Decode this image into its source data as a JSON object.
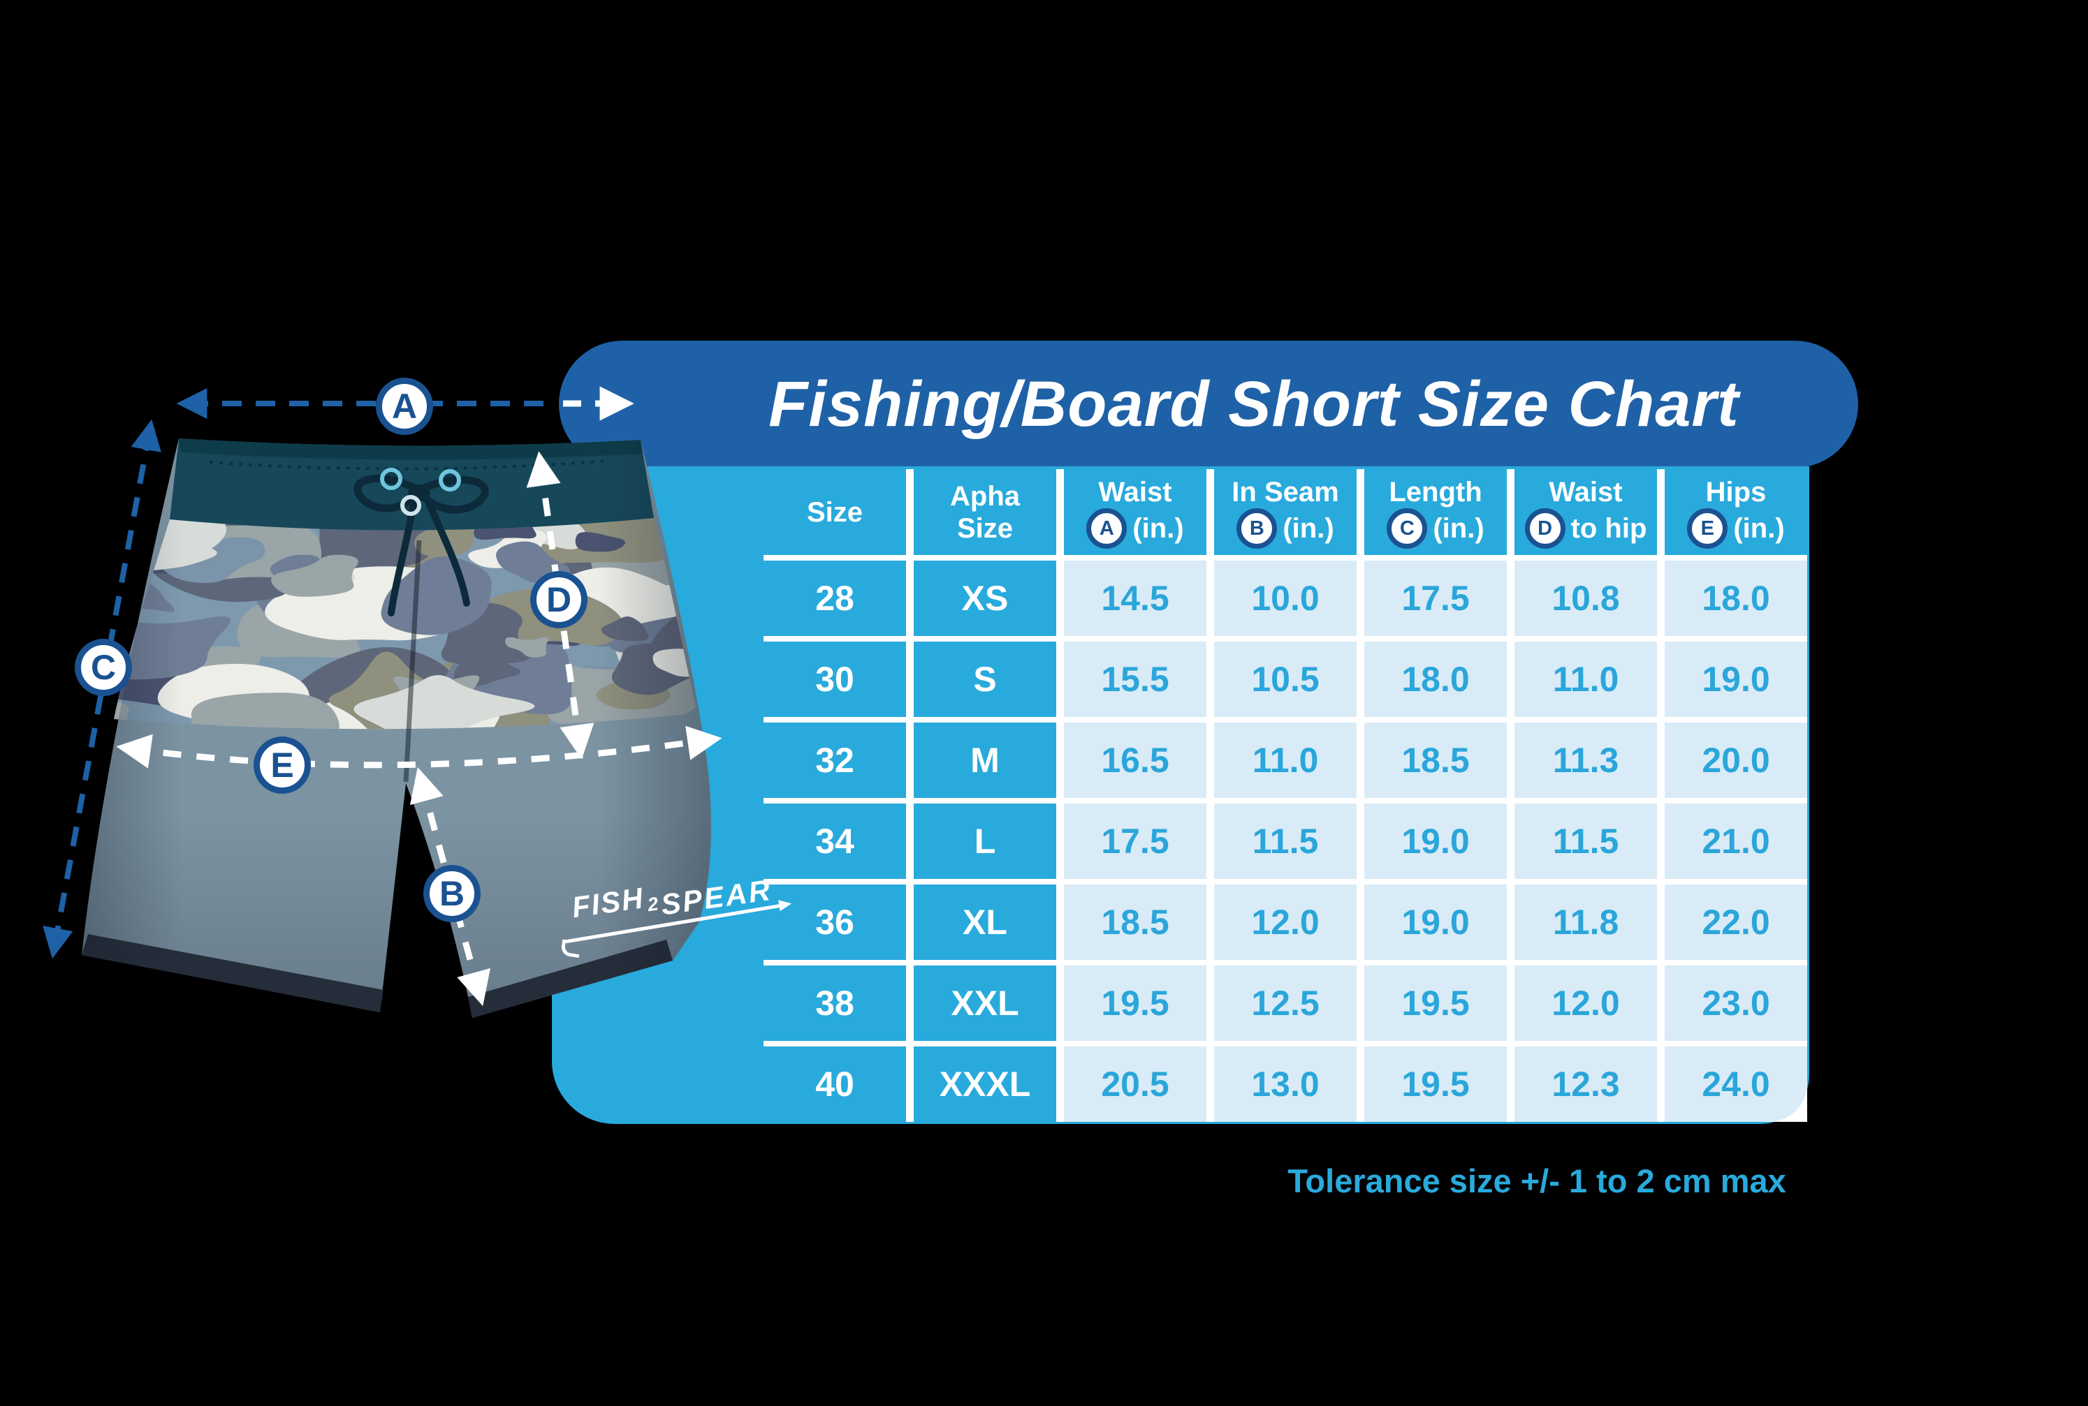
{
  "title": "Fishing/Board Short Size Chart",
  "tolerance_note": "Tolerance size +/- 1 to 2 cm max",
  "table": {
    "headers": [
      {
        "line1": "Size",
        "line2": "",
        "badge": ""
      },
      {
        "line1": "Apha",
        "line2": "Size",
        "badge": ""
      },
      {
        "line1": "Waist",
        "line2": "(in.)",
        "badge": "A"
      },
      {
        "line1": "In Seam",
        "line2": "(in.)",
        "badge": "B"
      },
      {
        "line1": "Length",
        "line2": "(in.)",
        "badge": "C"
      },
      {
        "line1": "Waist",
        "line2": "to hip",
        "badge": "D"
      },
      {
        "line1": "Hips",
        "line2": "(in.)",
        "badge": "E"
      }
    ],
    "rows": [
      {
        "cells": [
          "28",
          "XS",
          "14.5",
          "10.0",
          "17.5",
          "10.8",
          "18.0"
        ]
      },
      {
        "cells": [
          "30",
          "S",
          "15.5",
          "10.5",
          "18.0",
          "11.0",
          "19.0"
        ]
      },
      {
        "cells": [
          "32",
          "M",
          "16.5",
          "11.0",
          "18.5",
          "11.3",
          "20.0"
        ]
      },
      {
        "cells": [
          "34",
          "L",
          "17.5",
          "11.5",
          "19.0",
          "11.5",
          "21.0"
        ]
      },
      {
        "cells": [
          "36",
          "XL",
          "18.5",
          "12.0",
          "19.0",
          "11.8",
          "22.0"
        ]
      },
      {
        "cells": [
          "38",
          "XXL",
          "19.5",
          "12.5",
          "19.5",
          "12.0",
          "23.0"
        ]
      },
      {
        "cells": [
          "40",
          "XXXL",
          "20.5",
          "13.0",
          "19.5",
          "12.3",
          "24.0"
        ]
      }
    ]
  },
  "diagram": {
    "badges": {
      "a": "A",
      "b": "B",
      "c": "C",
      "d": "D",
      "e": "E"
    },
    "logo": {
      "word1": "FISH",
      "word2": "2",
      "word3": "SPEAR"
    }
  },
  "colors": {
    "header_bar_blue": "#1E61A7",
    "table_cyan": "#29AADC",
    "light_cell_blue": "#D9EBF7",
    "value_text_cyan": "#2AA6DA",
    "badge_navy": "#1A5291",
    "waistband_teal": "#16485A",
    "background": "#000000"
  }
}
